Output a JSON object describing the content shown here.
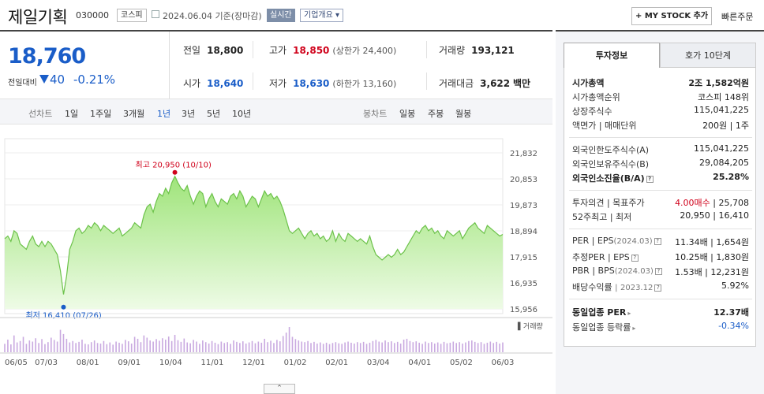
{
  "header": {
    "name": "제일기획",
    "code": "030000",
    "market": "코스피",
    "date_label": "2024.06.04  기준(장마감)",
    "realtime_label": "실시간",
    "company_info_label": "기업개요",
    "my_stock_label": "+ MY STOCK 추가",
    "quick_order_label": "빠른주문"
  },
  "price": {
    "current": "18,760",
    "change_label": "전일대비",
    "change": "40",
    "change_pct": "-0.21%"
  },
  "quote": {
    "prev": {
      "label": "전일",
      "value": "18,800"
    },
    "high": {
      "label": "고가",
      "value": "18,850",
      "sub": "(상한가 24,400)"
    },
    "volume": {
      "label": "거래량",
      "value": "193,121"
    },
    "open": {
      "label": "시가",
      "value": "18,640"
    },
    "low": {
      "label": "저가",
      "value": "18,630",
      "sub": "(하한가 13,160)"
    },
    "amount": {
      "label": "거래대금",
      "value": "3,622",
      "unit": "백만"
    }
  },
  "periods": {
    "line_label": "선차트",
    "line_items": [
      "1일",
      "1주일",
      "3개월",
      "1년",
      "3년",
      "5년",
      "10년"
    ],
    "selected": "1년",
    "candle_label": "봉차트",
    "candle_items": [
      "일봉",
      "주봉",
      "월봉"
    ]
  },
  "chart_data": {
    "type": "area",
    "x_ticks": [
      "06/05",
      "07/03",
      "08/01",
      "09/01",
      "10/04",
      "11/01",
      "12/01",
      "01/02",
      "02/01",
      "03/04",
      "04/01",
      "05/02",
      "06/03"
    ],
    "y_ticks": [
      "21,832",
      "20,853",
      "19,873",
      "18,894",
      "17,915",
      "16,935",
      "15,956"
    ],
    "ylim": [
      15956,
      21832
    ],
    "values": [
      18600,
      18700,
      18500,
      18900,
      18800,
      18400,
      18300,
      18200,
      18500,
      18700,
      18400,
      18300,
      18500,
      18300,
      18500,
      18400,
      18200,
      18000,
      17400,
      16500,
      17200,
      18200,
      18500,
      18900,
      19000,
      18800,
      18900,
      19100,
      19000,
      19200,
      19100,
      18900,
      19100,
      19000,
      18900,
      18800,
      18900,
      19000,
      18700,
      18800,
      18900,
      19000,
      19200,
      19100,
      19000,
      19500,
      19800,
      19900,
      19600,
      20000,
      20300,
      20200,
      20500,
      20300,
      20700,
      20950,
      20700,
      20500,
      20400,
      20600,
      20200,
      19900,
      20200,
      20400,
      20300,
      19800,
      20100,
      20300,
      20000,
      19800,
      20100,
      20000,
      19900,
      20200,
      20300,
      20100,
      20400,
      20200,
      19800,
      20000,
      20200,
      20100,
      19800,
      20100,
      20400,
      20200,
      20300,
      20100,
      20200,
      20000,
      19700,
      19300,
      18900,
      18800,
      18900,
      19000,
      18800,
      18600,
      18800,
      18900,
      18700,
      18800,
      18600,
      18700,
      18500,
      18600,
      18900,
      18500,
      18800,
      18600,
      18500,
      18800,
      18700,
      18600,
      18500,
      18600,
      18500,
      18400,
      18700,
      18300,
      18000,
      17900,
      17800,
      17900,
      18000,
      17900,
      18000,
      18200,
      18000,
      18100,
      18300,
      18500,
      18700,
      18900,
      18800,
      19000,
      19100,
      18900,
      19000,
      18800,
      18900,
      18700,
      18600,
      18900,
      18800,
      18700,
      18800,
      18900,
      18600,
      18800,
      19000,
      19100,
      19200,
      19000,
      18900,
      18800,
      19100,
      19000,
      18900,
      18800,
      18700,
      18760
    ],
    "high_label": "최고 20,950 (10/10)",
    "low_label": "최저 16,410 (07/26)",
    "volume_label": "거래량",
    "volume": [
      30,
      45,
      28,
      60,
      35,
      40,
      55,
      30,
      42,
      38,
      50,
      33,
      47,
      29,
      36,
      52,
      44,
      38,
      80,
      65,
      48,
      35,
      40,
      33,
      37,
      45,
      30,
      28,
      36,
      42,
      33,
      31,
      40,
      29,
      35,
      27,
      38,
      34,
      30,
      44,
      39,
      31,
      55,
      48,
      36,
      60,
      52,
      42,
      38,
      47,
      41,
      50,
      45,
      56,
      40,
      62,
      43,
      37,
      49,
      35,
      32,
      44,
      38,
      30,
      42,
      36,
      31,
      40,
      34,
      29,
      38,
      33,
      36,
      30,
      42,
      37,
      33,
      39,
      31,
      35,
      40,
      32,
      38,
      34,
      48,
      36,
      41,
      33,
      44,
      39,
      58,
      70,
      90,
      55,
      47,
      42,
      38,
      36,
      40,
      33,
      37,
      31,
      35,
      30,
      34,
      29,
      33,
      36,
      32,
      30,
      35,
      38,
      34,
      31,
      36,
      33,
      37,
      30,
      34,
      40,
      44,
      38,
      35,
      42,
      36,
      39,
      33,
      37,
      31,
      45,
      48,
      40,
      36,
      39,
      34,
      30,
      38,
      33,
      36,
      31,
      35,
      30,
      37,
      32,
      34,
      38,
      33,
      36,
      31,
      35,
      40,
      42,
      37,
      33,
      36,
      30,
      34,
      38,
      33,
      37,
      31,
      35
    ]
  },
  "side": {
    "tab_active": "투자정보",
    "tab_other": "호가 10단계",
    "market_cap": {
      "label": "시가총액",
      "value": "2조 1,582억원"
    },
    "market_cap_rank": {
      "label": "시가총액순위",
      "value": "코스피 148위"
    },
    "shares": {
      "label": "상장주식수",
      "value": "115,041,225"
    },
    "face": {
      "label": "액면가 | 매매단위",
      "value": "200원 | 1주"
    },
    "foreign_limit": {
      "label": "외국인한도주식수(A)",
      "value": "115,041,225"
    },
    "foreign_hold": {
      "label": "외국인보유주식수(B)",
      "value": "29,084,205"
    },
    "foreign_rate": {
      "label": "외국인소진율(B/A)",
      "value": "25.28%"
    },
    "opinion": {
      "label": "투자의견 | 목표주가",
      "value_red": "4.00매수",
      "value": "| 25,708"
    },
    "week52": {
      "label": "52주최고 | 최저",
      "value": "20,950 | 16,410"
    },
    "per": {
      "label": "PER | EPS",
      "extra": "(2024.03)",
      "value": "11.34배 | 1,654원"
    },
    "est_per": {
      "label": "추정PER | EPS",
      "value": "10.25배 | 1,830원"
    },
    "pbr": {
      "label": "PBR | BPS",
      "extra": "(2024.03)",
      "value": "1.53배 | 12,231원"
    },
    "div": {
      "label": "배당수익률",
      "extra": "2023.12",
      "value": "5.92%"
    },
    "industry_per": {
      "label": "동일업종 PER",
      "value": "12.37배"
    },
    "industry_rate": {
      "label": "동일업종 등락률",
      "value": "-0.34%"
    }
  }
}
